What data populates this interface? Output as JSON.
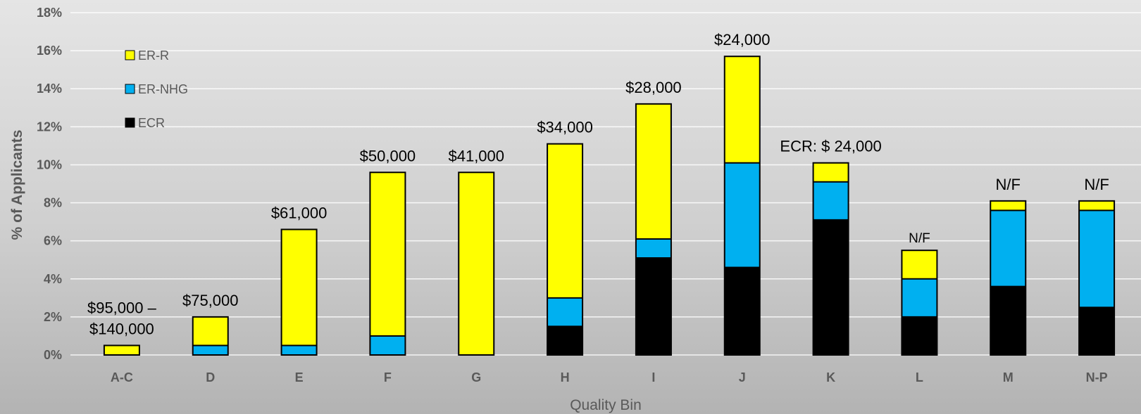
{
  "chart_data": {
    "type": "bar",
    "stacked": true,
    "title": "",
    "xlabel": "Quality Bin",
    "ylabel": "% of Applicants",
    "ylim": [
      0,
      18
    ],
    "y_ticks": [
      "0%",
      "2%",
      "4%",
      "6%",
      "8%",
      "10%",
      "12%",
      "14%",
      "16%",
      "18%"
    ],
    "grid": true,
    "legend_position": "top-left",
    "categories": [
      "A-C",
      "D",
      "E",
      "F",
      "G",
      "H",
      "I",
      "J",
      "K",
      "L",
      "M",
      "N-P"
    ],
    "series": [
      {
        "name": "ECR",
        "color": "#000000",
        "values": [
          0,
          0,
          0,
          0,
          0,
          1.5,
          5.1,
          4.6,
          7.1,
          2.0,
          3.6,
          2.5
        ]
      },
      {
        "name": "ER-NHG",
        "color": "#00b0f0",
        "values": [
          0,
          0.5,
          0.5,
          1.0,
          0,
          1.5,
          1.0,
          5.5,
          2.0,
          2.0,
          4.0,
          5.1
        ]
      },
      {
        "name": "ER-R",
        "color": "#ffff00",
        "values": [
          0.5,
          1.5,
          6.1,
          8.6,
          9.6,
          8.1,
          7.1,
          5.6,
          1.0,
          1.5,
          0.5,
          0.5
        ]
      }
    ],
    "legend_order": [
      "ER-R",
      "ER-NHG",
      "ECR"
    ],
    "bar_labels": [
      {
        "lines": [
          "$95,000 –",
          "$140,000"
        ],
        "size": "large"
      },
      {
        "lines": [
          "$75,000"
        ],
        "size": "large"
      },
      {
        "lines": [
          "$61,000"
        ],
        "size": "large"
      },
      {
        "lines": [
          "$50,000"
        ],
        "size": "large"
      },
      {
        "lines": [
          "$41,000"
        ],
        "size": "large"
      },
      {
        "lines": [
          "$34,000"
        ],
        "size": "large"
      },
      {
        "lines": [
          "$28,000"
        ],
        "size": "large"
      },
      {
        "lines": [
          "$24,000"
        ],
        "size": "large"
      },
      {
        "lines": [
          "ECR: $ 24,000"
        ],
        "size": "large"
      },
      {
        "lines": [
          "N/F"
        ],
        "size": "small"
      },
      {
        "lines": [
          "N/F"
        ],
        "size": "large"
      },
      {
        "lines": [
          "N/F"
        ],
        "size": "large"
      }
    ]
  }
}
